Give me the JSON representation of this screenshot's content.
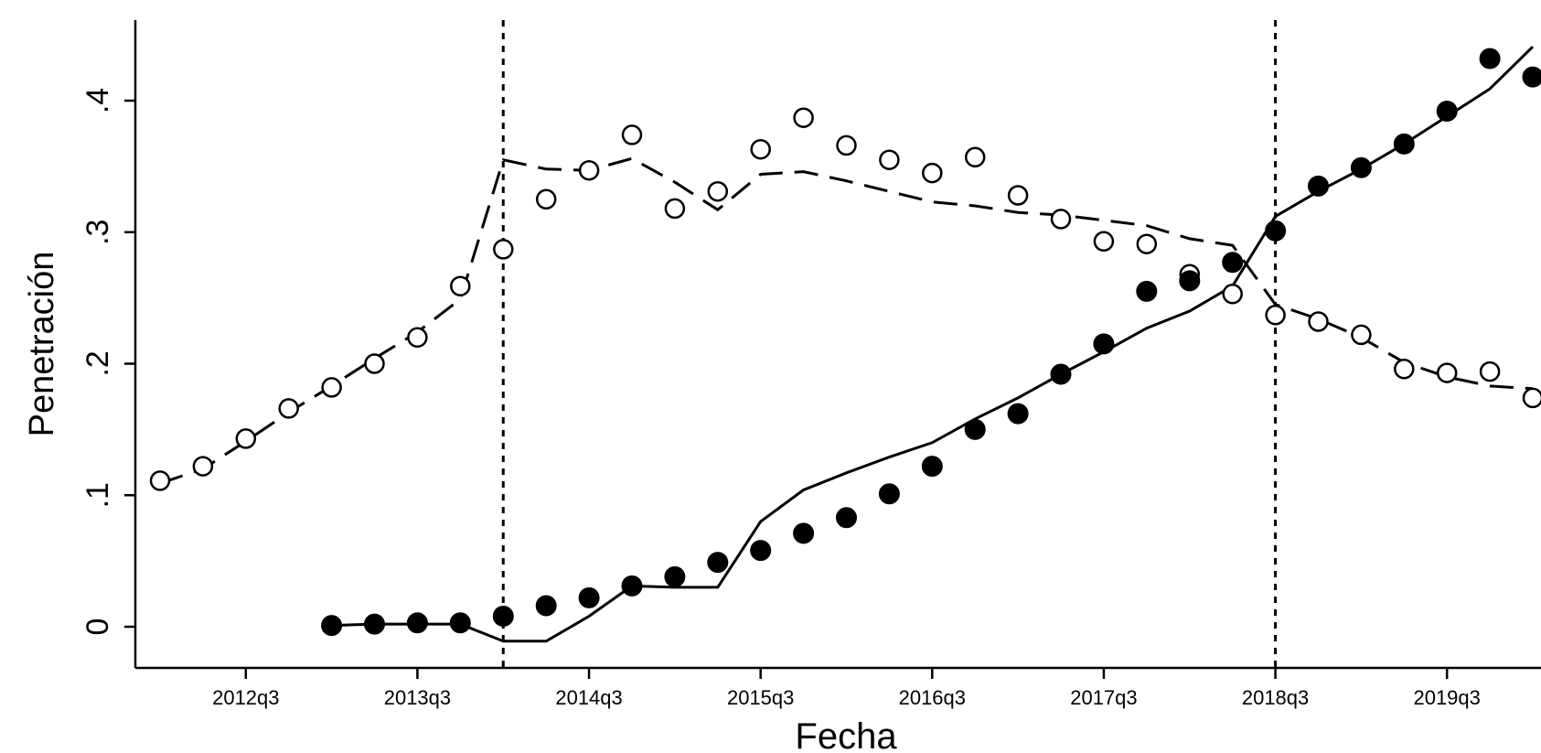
{
  "chart_data": {
    "type": "scatter",
    "title": "",
    "xlabel": "Fecha",
    "ylabel": "Penetración",
    "x_ticks": [
      "2012q3",
      "2013q3",
      "2014q3",
      "2015q3",
      "2016q3",
      "2017q3",
      "2018q3",
      "2019q3"
    ],
    "y_ticks": [
      "0",
      ".1",
      ".2",
      ".3",
      ".4"
    ],
    "ylim": [
      -0.031,
      0.46
    ],
    "xlim": [
      "2011q3",
      "2020q1"
    ],
    "grid": false,
    "legend": "none",
    "vlines": [
      "2014q1",
      "2018q3"
    ],
    "x": [
      "2012q1",
      "2012q2",
      "2012q3",
      "2012q4",
      "2013q1",
      "2013q2",
      "2013q3",
      "2013q4",
      "2014q1",
      "2014q2",
      "2014q3",
      "2014q4",
      "2015q1",
      "2015q2",
      "2015q3",
      "2015q4",
      "2016q1",
      "2016q2",
      "2016q3",
      "2016q4",
      "2017q1",
      "2017q2",
      "2017q3",
      "2017q4",
      "2018q1",
      "2018q2",
      "2018q3",
      "2018q4",
      "2019q1",
      "2019q2",
      "2019q3",
      "2019q4",
      "2020q1"
    ],
    "series": [
      {
        "style": "hollow-markers",
        "values": [
          0.111,
          0.122,
          0.143,
          0.166,
          0.182,
          0.2,
          0.22,
          0.259,
          0.287,
          0.325,
          0.347,
          0.374,
          0.318,
          0.331,
          0.363,
          0.387,
          0.366,
          0.355,
          0.345,
          0.357,
          0.328,
          0.31,
          0.293,
          0.291,
          0.268,
          0.253,
          0.237,
          0.232,
          0.222,
          0.196,
          0.193,
          0.194,
          0.174
        ]
      },
      {
        "style": "dashed-line",
        "values": [
          0.109,
          0.12,
          0.141,
          0.163,
          0.183,
          0.204,
          0.224,
          0.249,
          0.355,
          0.348,
          0.347,
          0.356,
          0.338,
          0.317,
          0.344,
          0.346,
          0.339,
          0.331,
          0.323,
          0.32,
          0.315,
          0.313,
          0.309,
          0.305,
          0.295,
          0.29,
          0.245,
          0.234,
          0.22,
          0.201,
          0.19,
          0.183,
          0.181
        ]
      },
      {
        "style": "filled-markers",
        "values": [
          null,
          null,
          null,
          null,
          0.001,
          0.002,
          0.003,
          0.003,
          0.008,
          0.016,
          0.022,
          0.031,
          0.038,
          0.049,
          0.058,
          0.071,
          0.083,
          0.101,
          0.122,
          0.15,
          0.162,
          0.192,
          0.215,
          0.255,
          0.263,
          0.277,
          0.301,
          0.335,
          0.349,
          0.367,
          0.392,
          0.432,
          0.418
        ]
      },
      {
        "style": "solid-line",
        "values": [
          null,
          null,
          null,
          null,
          0.001,
          0.002,
          0.002,
          0.002,
          -0.011,
          -0.011,
          0.008,
          0.031,
          0.03,
          0.03,
          0.08,
          0.104,
          0.117,
          0.129,
          0.14,
          0.158,
          0.174,
          0.192,
          0.209,
          0.227,
          0.24,
          0.259,
          0.312,
          0.331,
          0.348,
          0.367,
          0.388,
          0.409,
          0.441
        ]
      }
    ]
  }
}
